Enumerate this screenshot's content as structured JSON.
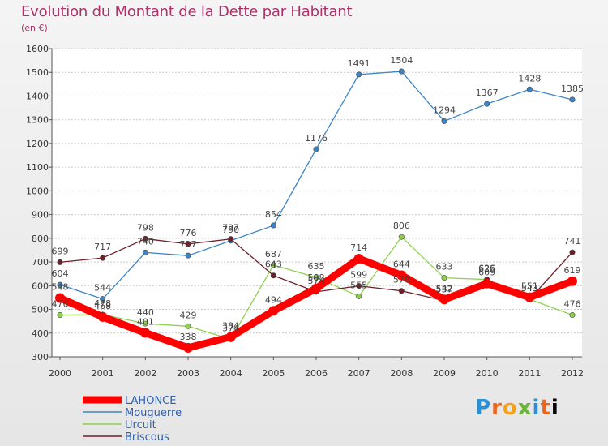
{
  "chart_data": {
    "type": "line",
    "title": "Evolution du Montant de la Dette par Habitant",
    "subtitle": "(en €)",
    "x": [
      "2000",
      "2001",
      "2002",
      "2003",
      "2004",
      "2005",
      "2006",
      "2007",
      "2008",
      "2009",
      "2010",
      "2011",
      "2012"
    ],
    "ylim": [
      300,
      1600
    ],
    "yticks": [
      300,
      400,
      500,
      600,
      700,
      800,
      900,
      1000,
      1100,
      1200,
      1300,
      1400,
      1500,
      1600
    ],
    "grid": "horizontal",
    "legend_position": "bottom-left",
    "series": [
      {
        "name": "LAHONCE",
        "color": "#ff0000",
        "values": [
          548,
          468,
          401,
          338,
          384,
          494,
          588,
          714,
          644,
          542,
          609,
          551,
          619
        ]
      },
      {
        "name": "Mouguerre",
        "color": "#3d85c6",
        "values": [
          604,
          544,
          740,
          727,
          790,
          854,
          1176,
          1491,
          1504,
          1294,
          1367,
          1428,
          1385
        ]
      },
      {
        "name": "Urcuit",
        "color": "#8fd14f",
        "values": [
          476,
          478,
          440,
          429,
          374,
          687,
          635,
          555,
          806,
          633,
          626,
          543,
          476
        ]
      },
      {
        "name": "Briscous",
        "color": "#6e1f2a",
        "values": [
          699,
          717,
          798,
          776,
          797,
          643,
          574,
          599,
          578,
          537,
          625,
          543,
          741
        ]
      }
    ]
  },
  "logo_text": "Proxiti"
}
